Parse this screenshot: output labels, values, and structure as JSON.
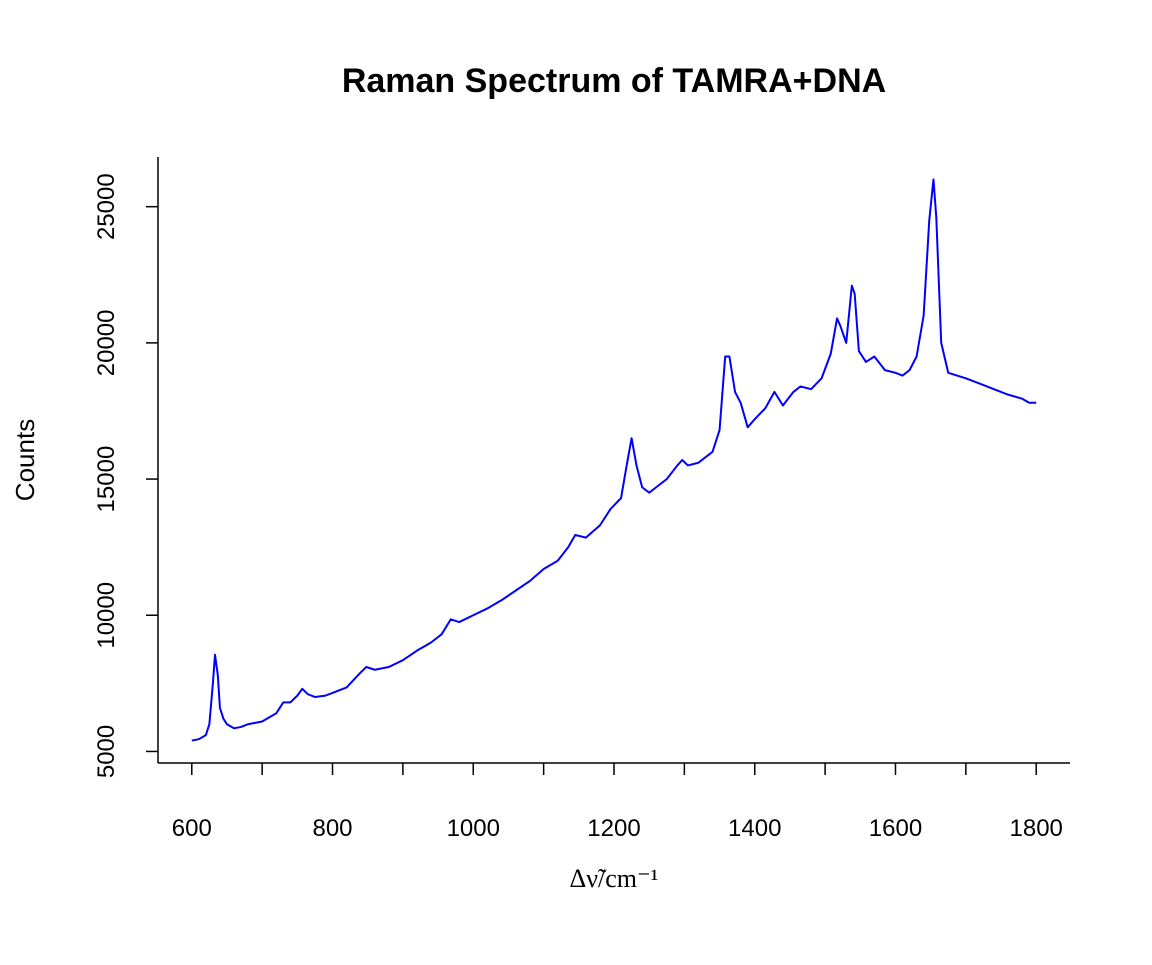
{
  "chart_data": {
    "type": "line",
    "title": "Raman Spectrum of TAMRA+DNA",
    "xlabel": "Δν̃/cm⁻¹",
    "ylabel": "Counts",
    "color": "#0000ff",
    "x": [
      600,
      610,
      620,
      625,
      630,
      633,
      637,
      640,
      645,
      650,
      660,
      670,
      680,
      690,
      700,
      710,
      720,
      730,
      740,
      750,
      757,
      765,
      775,
      790,
      800,
      820,
      840,
      848,
      860,
      880,
      900,
      920,
      940,
      955,
      968,
      980,
      1000,
      1020,
      1040,
      1060,
      1080,
      1100,
      1120,
      1135,
      1145,
      1160,
      1180,
      1195,
      1210,
      1218,
      1225,
      1232,
      1240,
      1250,
      1260,
      1275,
      1290,
      1297,
      1305,
      1320,
      1340,
      1350,
      1358,
      1364,
      1372,
      1380,
      1390,
      1400,
      1415,
      1428,
      1440,
      1455,
      1465,
      1480,
      1495,
      1508,
      1517,
      1522,
      1530,
      1538,
      1542,
      1548,
      1558,
      1570,
      1585,
      1600,
      1610,
      1620,
      1630,
      1640,
      1648,
      1654,
      1658,
      1665,
      1675,
      1700,
      1720,
      1740,
      1760,
      1780,
      1790,
      1800
    ],
    "values": [
      5400,
      5450,
      5600,
      6000,
      7500,
      8550,
      7800,
      6600,
      6200,
      6000,
      5850,
      5900,
      6000,
      6050,
      6100,
      6250,
      6400,
      6800,
      6800,
      7050,
      7300,
      7100,
      7000,
      7050,
      7150,
      7350,
      7900,
      8100,
      8000,
      8100,
      8350,
      8700,
      9000,
      9300,
      9850,
      9750,
      10000,
      10250,
      10550,
      10900,
      11250,
      11700,
      12000,
      12500,
      12950,
      12850,
      13300,
      13900,
      14300,
      15500,
      16500,
      15500,
      14700,
      14500,
      14700,
      15000,
      15500,
      15700,
      15500,
      15600,
      16000,
      16800,
      19500,
      19500,
      18200,
      17800,
      16900,
      17200,
      17600,
      18200,
      17700,
      18200,
      18400,
      18300,
      18700,
      19600,
      20900,
      20600,
      20000,
      22100,
      21800,
      19700,
      19300,
      19500,
      19000,
      18900,
      18800,
      19000,
      19500,
      21000,
      24500,
      26000,
      24600,
      20000,
      18900,
      18700,
      18500,
      18300,
      18100,
      17950,
      17800,
      17800
    ],
    "xlim": [
      552,
      1848
    ],
    "ylim": [
      4576,
      26824
    ],
    "xticks": [
      600,
      800,
      1000,
      1200,
      1400,
      1600,
      1800
    ],
    "xminorticks": [
      700,
      900,
      1100,
      1300,
      1500,
      1700
    ],
    "yticks": [
      5000,
      10000,
      15000,
      20000,
      25000
    ]
  }
}
